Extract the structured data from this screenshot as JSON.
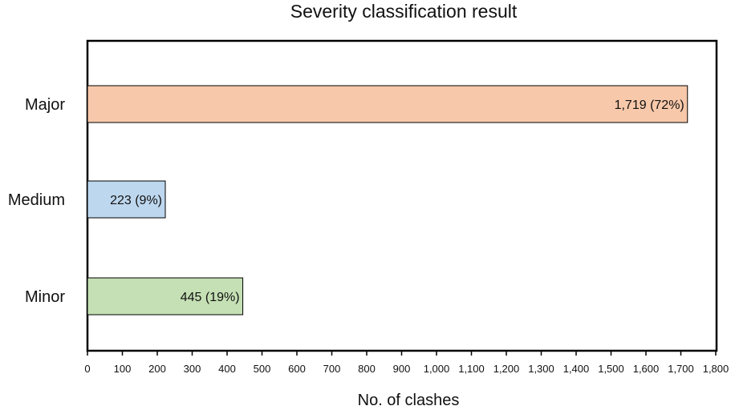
{
  "chart_data": {
    "type": "bar",
    "orientation": "horizontal",
    "title": "Severity classification result",
    "xlabel": "No. of clashes",
    "ylabel": "",
    "xlim": [
      0,
      1800
    ],
    "x_ticks": [
      0,
      100,
      200,
      300,
      400,
      500,
      600,
      700,
      800,
      900,
      1000,
      1100,
      1200,
      1300,
      1400,
      1500,
      1600,
      1700,
      1800
    ],
    "x_tick_labels": [
      "0",
      "100",
      "200",
      "300",
      "400",
      "500",
      "600",
      "700",
      "800",
      "900",
      "1,000",
      "1,100",
      "1,200",
      "1,300",
      "1,400",
      "1,500",
      "1,600",
      "1,700",
      "1,800"
    ],
    "categories": [
      "Major",
      "Medium",
      "Minor"
    ],
    "values": [
      1719,
      223,
      445
    ],
    "bar_labels": [
      "1,719 (72%)",
      "223 (9%)",
      "445 (19%)"
    ],
    "colors": [
      "#f7c8aa",
      "#bdd7ee",
      "#c5e0b4"
    ],
    "grid": false,
    "legend": "none"
  }
}
